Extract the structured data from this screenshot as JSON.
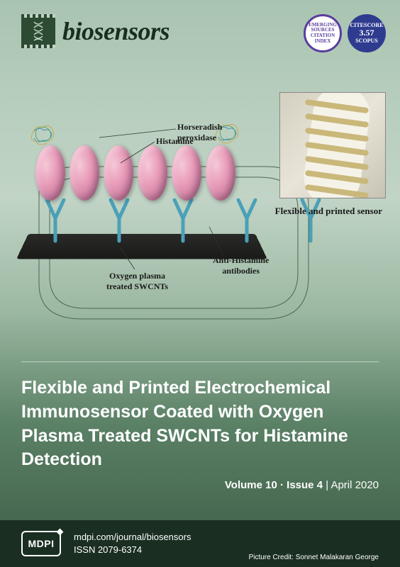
{
  "journal": {
    "name": "biosensors",
    "publisher": "MDPI",
    "url": "mdpi.com/journal/biosensors",
    "issn": "ISSN 2079-6374"
  },
  "badges": {
    "esci": {
      "line1": "EMERGING",
      "line2": "SOURCES",
      "line3": "CITATION INDEX"
    },
    "scopus": {
      "label_top": "CITESCORE",
      "score": "3.57",
      "label_bottom": "SCOPUS"
    }
  },
  "diagram": {
    "labels": {
      "hrp": "Horseradish\nperoxidase",
      "histamine": "Histamine",
      "oxygen_plasma": "Oxygen plasma\ntreated SWCNTs",
      "anti_histamine": "Anti-Histamine\nantibodies",
      "flexible_sensor": "Flexible and printed sensor"
    },
    "egg_count": 6,
    "y_count": 5,
    "sensor_stripes": [
      15,
      35,
      55,
      75,
      95,
      115,
      135
    ],
    "colors": {
      "egg_light": "#f5c9d8",
      "egg_dark": "#8f5570",
      "y_shape": "#4aa0b8",
      "substrate": "#1a1a18",
      "stripe": "#c9b87a"
    }
  },
  "article": {
    "title": "Flexible and Printed Electrochemical Immunosensor Coated with Oxygen Plasma Treated SWCNTs for Histamine Detection"
  },
  "issue": {
    "volume_label": "Volume 10",
    "issue_label": "Issue 4",
    "date": "April 2020",
    "separator": " · ",
    "date_prefix": " | "
  },
  "credit": {
    "label": "Picture Credit: ",
    "name": "Sonnet Malakaran George"
  }
}
